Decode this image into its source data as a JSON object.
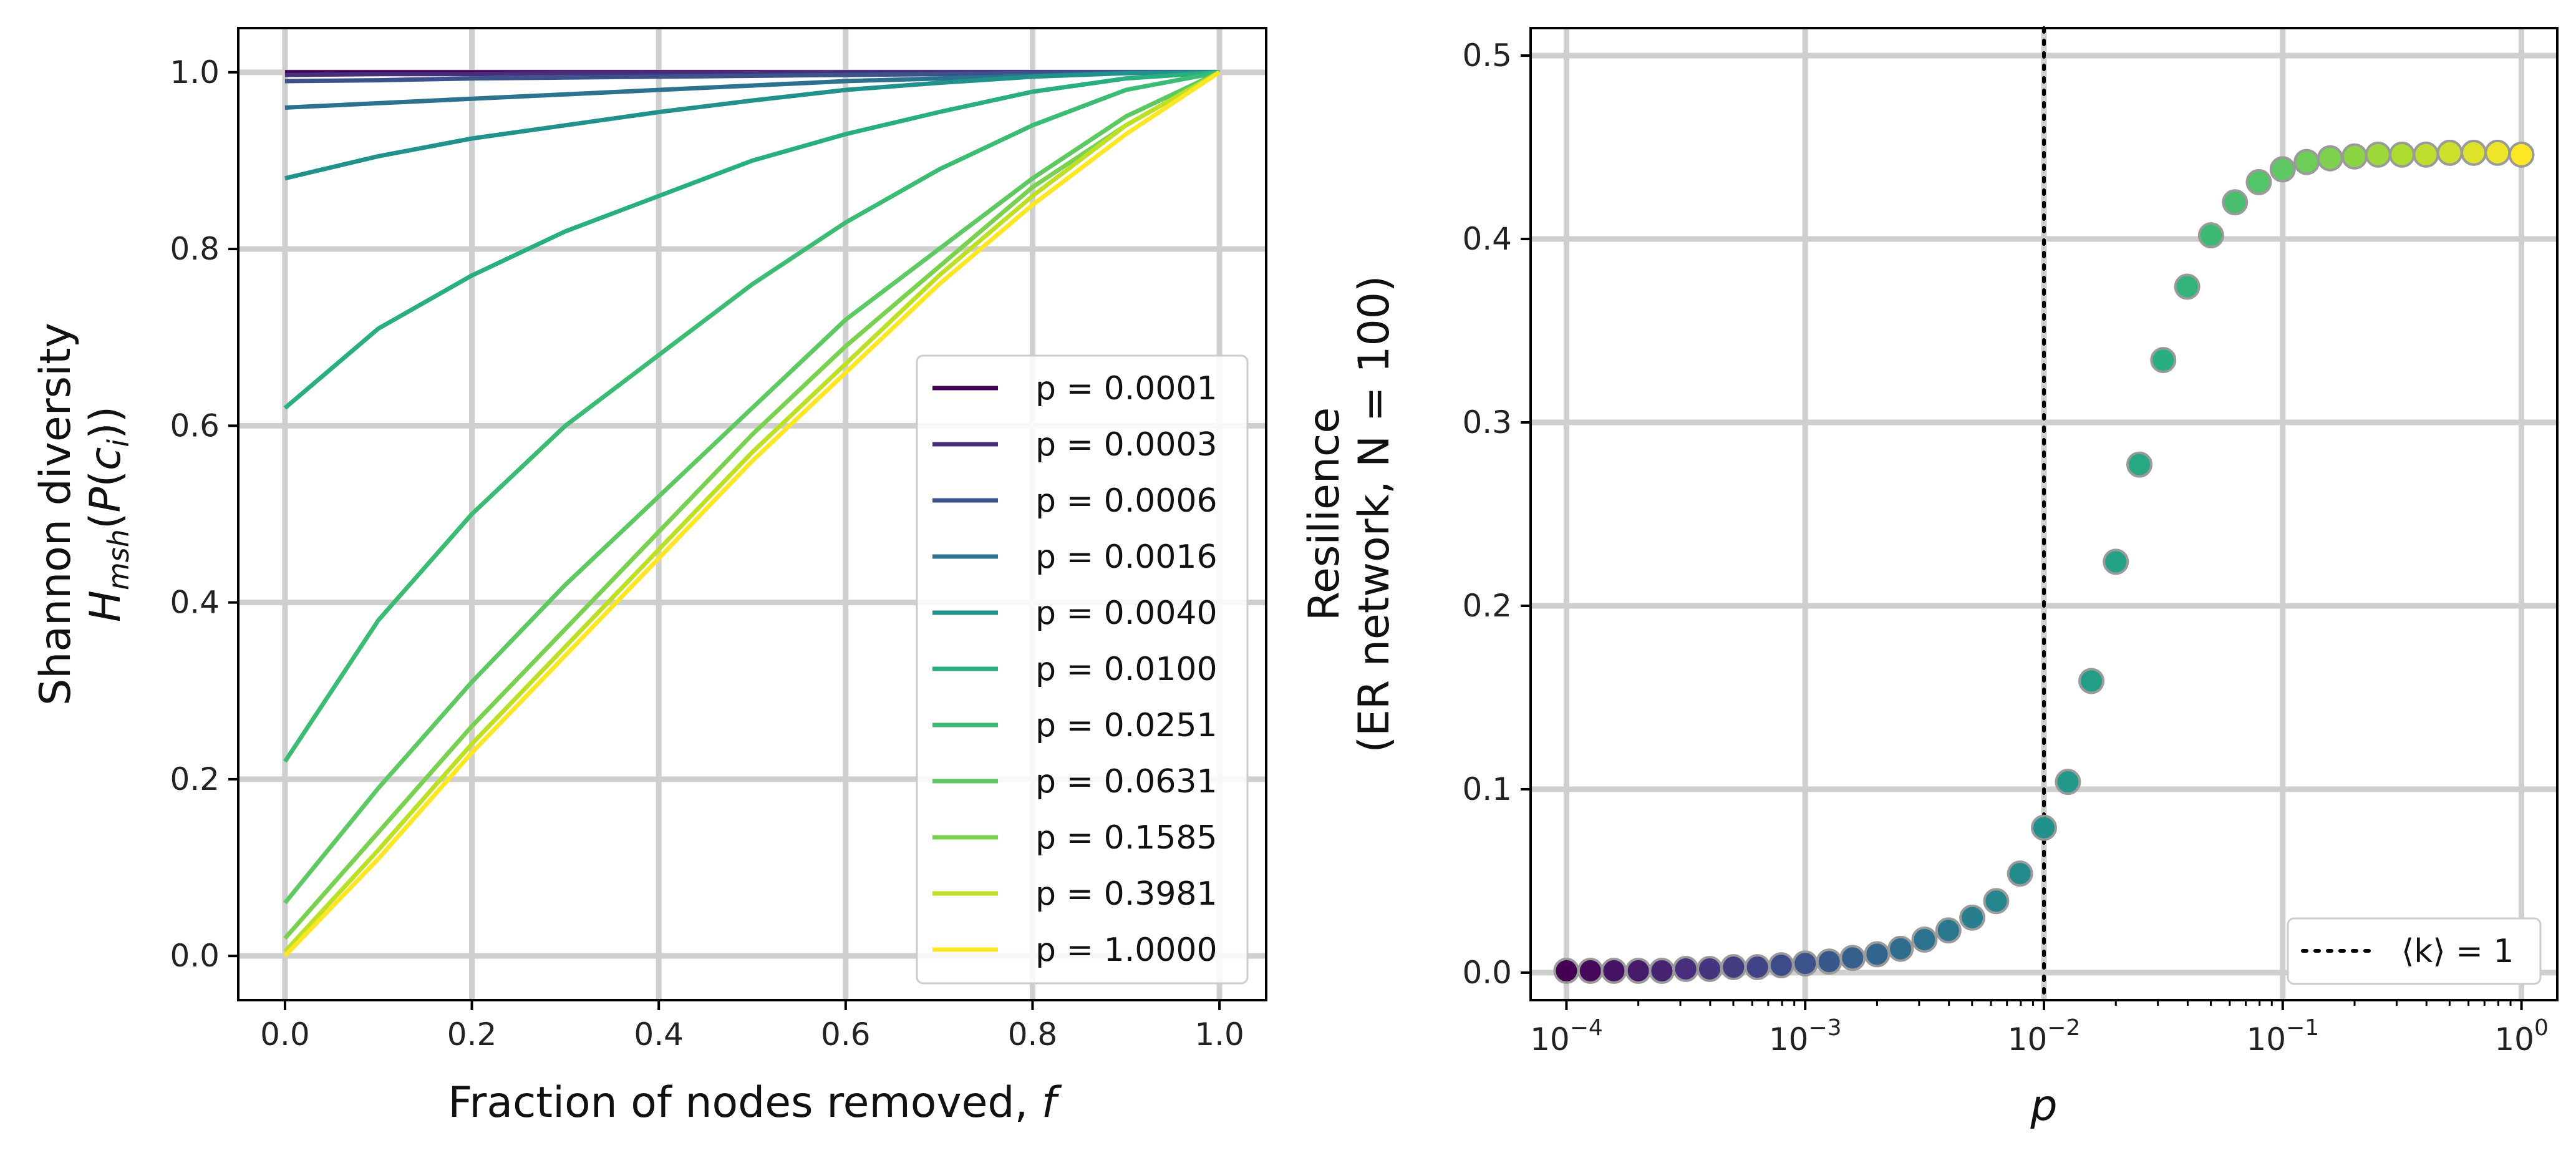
{
  "chart_data": [
    {
      "type": "line",
      "xlabel_text": "Fraction of nodes removed, ",
      "xlabel_var": "f",
      "ylabel_line1": "Shannon diversity",
      "ylabel_line2": "H_msh(P(c_i))",
      "xlim": [
        -0.05,
        1.05
      ],
      "ylim": [
        -0.05,
        1.05
      ],
      "xticks": [
        0.0,
        0.2,
        0.4,
        0.6,
        0.8,
        1.0
      ],
      "xtick_labels": [
        "0.0",
        "0.2",
        "0.4",
        "0.6",
        "0.8",
        "1.0"
      ],
      "yticks": [
        0.0,
        0.2,
        0.4,
        0.6,
        0.8,
        1.0
      ],
      "ytick_labels": [
        "0.0",
        "0.2",
        "0.4",
        "0.6",
        "0.8",
        "1.0"
      ],
      "grid": true,
      "legend_position": "bottom-right",
      "x": [
        0.0,
        0.1,
        0.2,
        0.3,
        0.4,
        0.5,
        0.6,
        0.7,
        0.8,
        0.9,
        1.0
      ],
      "series": [
        {
          "name": "p = 0.0001",
          "color": "#440154",
          "values": [
            1.0,
            1.0,
            1.0,
            1.0,
            1.0,
            1.0,
            1.0,
            1.0,
            1.0,
            1.0,
            1.0
          ]
        },
        {
          "name": "p = 0.0003",
          "color": "#472d7b",
          "values": [
            0.997,
            0.998,
            0.998,
            0.999,
            0.999,
            0.999,
            1.0,
            1.0,
            1.0,
            1.0,
            1.0
          ]
        },
        {
          "name": "p = 0.0006",
          "color": "#3b528b",
          "values": [
            0.99,
            0.991,
            0.993,
            0.994,
            0.995,
            0.996,
            0.997,
            0.998,
            0.999,
            1.0,
            1.0
          ]
        },
        {
          "name": "p = 0.0016",
          "color": "#2c728e",
          "values": [
            0.96,
            0.965,
            0.97,
            0.975,
            0.98,
            0.985,
            0.99,
            0.993,
            0.996,
            0.999,
            1.0
          ]
        },
        {
          "name": "p = 0.0040",
          "color": "#21918c",
          "values": [
            0.88,
            0.905,
            0.925,
            0.94,
            0.955,
            0.968,
            0.98,
            0.988,
            0.995,
            0.999,
            1.0
          ]
        },
        {
          "name": "p = 0.0100",
          "color": "#28ae80",
          "values": [
            0.62,
            0.71,
            0.77,
            0.82,
            0.86,
            0.9,
            0.93,
            0.955,
            0.978,
            0.993,
            1.0
          ]
        },
        {
          "name": "p = 0.0251",
          "color": "#3cbb75",
          "values": [
            0.22,
            0.38,
            0.5,
            0.6,
            0.68,
            0.76,
            0.83,
            0.89,
            0.94,
            0.98,
            1.0
          ]
        },
        {
          "name": "p = 0.0631",
          "color": "#5ec962",
          "values": [
            0.06,
            0.19,
            0.31,
            0.42,
            0.52,
            0.62,
            0.72,
            0.8,
            0.88,
            0.95,
            1.0
          ]
        },
        {
          "name": "p = 0.1585",
          "color": "#7ad151",
          "values": [
            0.02,
            0.14,
            0.26,
            0.37,
            0.48,
            0.59,
            0.69,
            0.78,
            0.87,
            0.94,
            1.0
          ]
        },
        {
          "name": "p = 0.3981",
          "color": "#bddf26",
          "values": [
            0.005,
            0.12,
            0.24,
            0.35,
            0.46,
            0.57,
            0.67,
            0.77,
            0.86,
            0.94,
            1.0
          ]
        },
        {
          "name": "p = 1.0000",
          "color": "#fde725",
          "values": [
            0.0,
            0.11,
            0.23,
            0.34,
            0.45,
            0.56,
            0.66,
            0.76,
            0.85,
            0.93,
            1.0
          ]
        }
      ]
    },
    {
      "type": "scatter",
      "xscale": "log",
      "xlabel": "p",
      "ylabel_line1": "Resilience",
      "ylabel_line2": "(ER network, N = 100)",
      "xlim_log10": [
        -4.15,
        0.15
      ],
      "ylim": [
        -0.015,
        0.515
      ],
      "xtick_exponents": [
        -4,
        -3,
        -2,
        -1,
        0
      ],
      "xtick_labels": [
        "10",
        "10",
        "10",
        "10",
        "10"
      ],
      "xtick_superscripts": [
        "−4",
        "−3",
        "−2",
        "−1",
        "0"
      ],
      "yticks": [
        0.0,
        0.1,
        0.2,
        0.3,
        0.4,
        0.5
      ],
      "ytick_labels": [
        "0.0",
        "0.1",
        "0.2",
        "0.3",
        "0.4",
        "0.5"
      ],
      "grid": true,
      "legend_position": "bottom-right",
      "vline": {
        "x": 0.01,
        "label": "⟨k⟩ = 1",
        "style": "dotted",
        "color": "#000000"
      },
      "p": [
        0.0001,
        0.000126,
        0.000158,
        0.0002,
        0.000251,
        0.000316,
        0.000398,
        0.000501,
        0.000631,
        0.000794,
        0.001,
        0.00126,
        0.00158,
        0.002,
        0.00251,
        0.00316,
        0.00398,
        0.00501,
        0.00631,
        0.00794,
        0.01,
        0.0126,
        0.0158,
        0.02,
        0.0251,
        0.0316,
        0.0398,
        0.0501,
        0.0631,
        0.0794,
        0.1,
        0.126,
        0.158,
        0.2,
        0.251,
        0.316,
        0.398,
        0.501,
        0.631,
        0.794,
        1.0
      ],
      "resilience": [
        0.001,
        0.001,
        0.001,
        0.001,
        0.001,
        0.002,
        0.002,
        0.003,
        0.003,
        0.004,
        0.005,
        0.006,
        0.008,
        0.01,
        0.013,
        0.018,
        0.023,
        0.03,
        0.039,
        0.054,
        0.079,
        0.104,
        0.159,
        0.224,
        0.277,
        0.334,
        0.374,
        0.402,
        0.42,
        0.431,
        0.438,
        0.442,
        0.444,
        0.445,
        0.446,
        0.446,
        0.446,
        0.447,
        0.447,
        0.447,
        0.446
      ]
    }
  ]
}
